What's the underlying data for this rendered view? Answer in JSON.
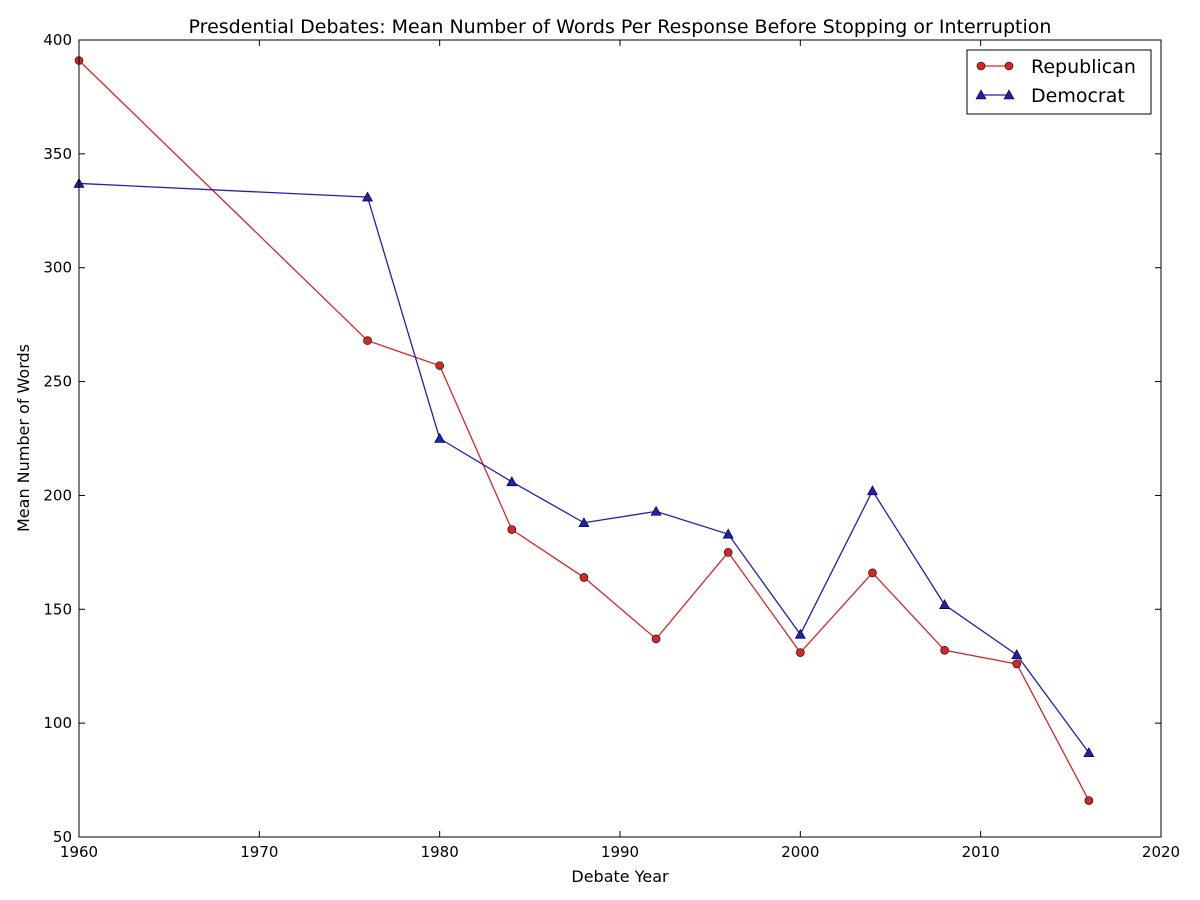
{
  "chart_data": {
    "type": "line",
    "title": "Presdential Debates: Mean Number of Words Per Response Before Stopping or Interruption",
    "xlabel": "Debate Year",
    "ylabel": "Mean Number of Words",
    "xlim": [
      1960,
      2020
    ],
    "ylim": [
      50,
      400
    ],
    "xticks": [
      1960,
      1970,
      1980,
      1990,
      2000,
      2010,
      2020
    ],
    "yticks": [
      50,
      100,
      150,
      200,
      250,
      300,
      350,
      400
    ],
    "grid": false,
    "legend_position": "top-right",
    "series": [
      {
        "name": "Republican",
        "color": "#d62728",
        "marker": "circle",
        "x": [
          1960,
          1976,
          1980,
          1984,
          1988,
          1992,
          1996,
          2000,
          2004,
          2008,
          2012,
          2016
        ],
        "y": [
          391,
          268,
          257,
          185,
          164,
          137,
          175,
          131,
          166,
          132,
          126,
          66
        ]
      },
      {
        "name": "Democrat",
        "color": "#1f1fb4",
        "marker": "triangle",
        "x": [
          1960,
          1976,
          1980,
          1984,
          1988,
          1992,
          1996,
          2000,
          2004,
          2008,
          2012,
          2016
        ],
        "y": [
          337,
          331,
          225,
          206,
          188,
          193,
          183,
          139,
          202,
          152,
          130,
          87
        ]
      }
    ]
  }
}
